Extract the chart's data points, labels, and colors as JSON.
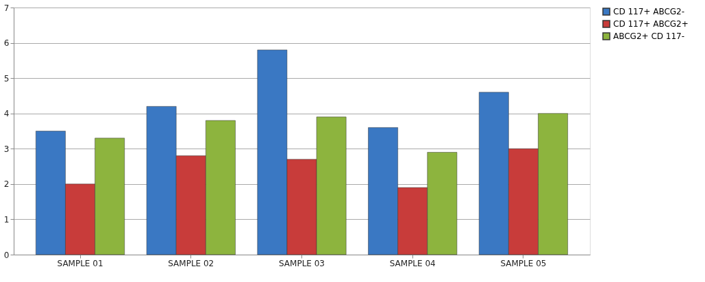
{
  "chart_data": {
    "type": "bar",
    "categories": [
      "SAMPLE 01",
      "SAMPLE 02",
      "SAMPLE 03",
      "SAMPLE 04",
      "SAMPLE 05"
    ],
    "series": [
      {
        "name": "CD 117+ ABCG2-",
        "color": "#3a78c3",
        "values": [
          3.5,
          4.2,
          5.8,
          3.6,
          4.6
        ]
      },
      {
        "name": "CD 117+ ABCG2+",
        "color": "#c83c3a",
        "values": [
          2.0,
          2.8,
          2.7,
          1.9,
          3.0
        ]
      },
      {
        "name": "ABCG2+ CD 117-",
        "color": "#8db43e",
        "values": [
          3.3,
          3.8,
          3.9,
          2.9,
          4.0
        ]
      }
    ],
    "ylim": [
      0,
      7
    ],
    "yticks": [
      0,
      1,
      2,
      3,
      4,
      5,
      6,
      7
    ],
    "grid": "y",
    "legend": "right"
  }
}
